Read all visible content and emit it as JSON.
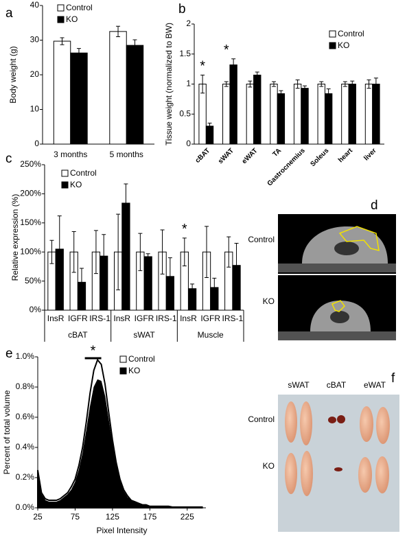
{
  "chart_data": [
    {
      "type": "bar",
      "panel": "a",
      "ylabel": "Body weight (g)",
      "categories": [
        "3 months",
        "5 months"
      ],
      "series": [
        {
          "name": "Control",
          "color": "#ffffff",
          "values": [
            29.7,
            32.5
          ],
          "errors": [
            1.0,
            1.5
          ]
        },
        {
          "name": "KO",
          "color": "#000000",
          "values": [
            26.3,
            28.5
          ],
          "errors": [
            1.3,
            1.6
          ]
        }
      ],
      "ylim": [
        0,
        40
      ],
      "yticks": [
        0,
        10,
        20,
        30,
        40
      ],
      "legend": "upper left"
    },
    {
      "type": "bar",
      "panel": "b",
      "ylabel": "Tissue weight (normalized to BW)",
      "categories": [
        "cBAT",
        "sWAT",
        "eWAT",
        "TA",
        "Gastrocnemius",
        "Soleus",
        "heart",
        "liver"
      ],
      "series": [
        {
          "name": "Control",
          "color": "#ffffff",
          "values": [
            1,
            1,
            1,
            1,
            1,
            1,
            1,
            1
          ],
          "errors": [
            0.15,
            0.04,
            0.05,
            0.04,
            0.07,
            0.04,
            0.04,
            0.07
          ]
        },
        {
          "name": "KO",
          "color": "#000000",
          "values": [
            0.3,
            1.32,
            1.15,
            0.84,
            0.93,
            0.84,
            1.0,
            1.0
          ],
          "errors": [
            0.05,
            0.1,
            0.05,
            0.05,
            0.04,
            0.08,
            0.05,
            0.1
          ]
        }
      ],
      "ylim": [
        0,
        2
      ],
      "yticks": [
        0,
        0.5,
        1,
        1.5,
        2
      ],
      "annotations": [
        "*",
        "*"
      ],
      "legend": "upper right"
    },
    {
      "type": "bar",
      "panel": "c",
      "ylabel": "Relative expression (%)",
      "categories": [
        "InsR",
        "IGFR",
        "IRS-1",
        "InsR",
        "IGFR",
        "IRS-1",
        "InsR",
        "IGFR",
        "IRS-1"
      ],
      "groups": [
        "cBAT",
        "sWAT",
        "Muscle"
      ],
      "series": [
        {
          "name": "Control",
          "color": "#ffffff",
          "values": [
            100,
            100,
            100,
            100,
            100,
            100,
            100,
            100,
            100
          ],
          "errors": [
            20,
            35,
            37,
            65,
            32,
            38,
            24,
            44,
            26
          ]
        },
        {
          "name": "KO",
          "color": "#000000",
          "values": [
            105,
            48,
            93,
            184,
            92,
            58,
            37,
            39,
            77
          ],
          "errors": [
            57,
            24,
            37,
            33,
            5,
            32,
            8,
            16,
            38
          ]
        }
      ],
      "ylim": [
        0,
        250
      ],
      "yticks": [
        {
          "value": 0,
          "label": "0%"
        },
        {
          "value": 50,
          "label": "50%"
        },
        {
          "value": 100,
          "label": "100%"
        },
        {
          "value": 150,
          "label": "150%"
        },
        {
          "value": 200,
          "label": "200%"
        },
        {
          "value": 250,
          "label": "250%"
        }
      ],
      "annotations": [
        "*"
      ],
      "legend": "upper left"
    },
    {
      "type": "area",
      "panel": "e",
      "xlabel": "Pixel Intensity",
      "ylabel": "Percent of total volume",
      "x": [
        25,
        30,
        35,
        40,
        45,
        50,
        55,
        60,
        65,
        70,
        75,
        80,
        85,
        90,
        95,
        100,
        105,
        110,
        115,
        120,
        125,
        130,
        135,
        140,
        145,
        150,
        155,
        160,
        165,
        170,
        175,
        180,
        185,
        190,
        195,
        200,
        205,
        210,
        215,
        220,
        225,
        230,
        235,
        240,
        245
      ],
      "series": [
        {
          "name": "Control",
          "color": "#ffffff",
          "values": [
            0.25,
            0.1,
            0.06,
            0.05,
            0.05,
            0.05,
            0.06,
            0.08,
            0.1,
            0.14,
            0.19,
            0.28,
            0.4,
            0.57,
            0.76,
            0.91,
            0.98,
            0.95,
            0.82,
            0.63,
            0.45,
            0.3,
            0.19,
            0.12,
            0.08,
            0.05,
            0.04,
            0.03,
            0.02,
            0.02,
            0.01,
            0.01,
            0.01,
            0.01,
            0.01,
            0.01,
            0.005,
            0.005,
            0.005,
            0.005,
            0.005,
            0.005,
            0.005,
            0.005,
            0.005
          ]
        },
        {
          "name": "KO",
          "color": "#000000",
          "values": [
            0.22,
            0.09,
            0.05,
            0.04,
            0.04,
            0.04,
            0.05,
            0.07,
            0.09,
            0.12,
            0.17,
            0.25,
            0.36,
            0.51,
            0.67,
            0.8,
            0.85,
            0.84,
            0.74,
            0.58,
            0.42,
            0.28,
            0.18,
            0.11,
            0.07,
            0.05,
            0.04,
            0.03,
            0.02,
            0.02,
            0.01,
            0.01,
            0.01,
            0.01,
            0.01,
            0.01,
            0.005,
            0.005,
            0.005,
            0.005,
            0.005,
            0.005,
            0.005,
            0.005,
            0.005
          ]
        }
      ],
      "xlim": [
        25,
        250
      ],
      "xticks": [
        25,
        75,
        125,
        175,
        225
      ],
      "ylim": [
        0,
        1.0
      ],
      "yticks": [
        {
          "value": 0,
          "label": "0.0%"
        },
        {
          "value": 0.2,
          "label": "0.2%"
        },
        {
          "value": 0.4,
          "label": "0.4%"
        },
        {
          "value": 0.6,
          "label": "0.6%"
        },
        {
          "value": 0.8,
          "label": "0.8%"
        },
        {
          "value": 1.0,
          "label": "1.0%"
        }
      ],
      "annotations": [
        "*"
      ],
      "legend": "upper right"
    }
  ],
  "images": [
    {
      "panel": "d",
      "labels": [
        "Control",
        "KO"
      ]
    },
    {
      "panel": "f",
      "columns": [
        "sWAT",
        "cBAT",
        "eWAT"
      ],
      "rows": [
        "Control",
        "KO"
      ]
    }
  ]
}
